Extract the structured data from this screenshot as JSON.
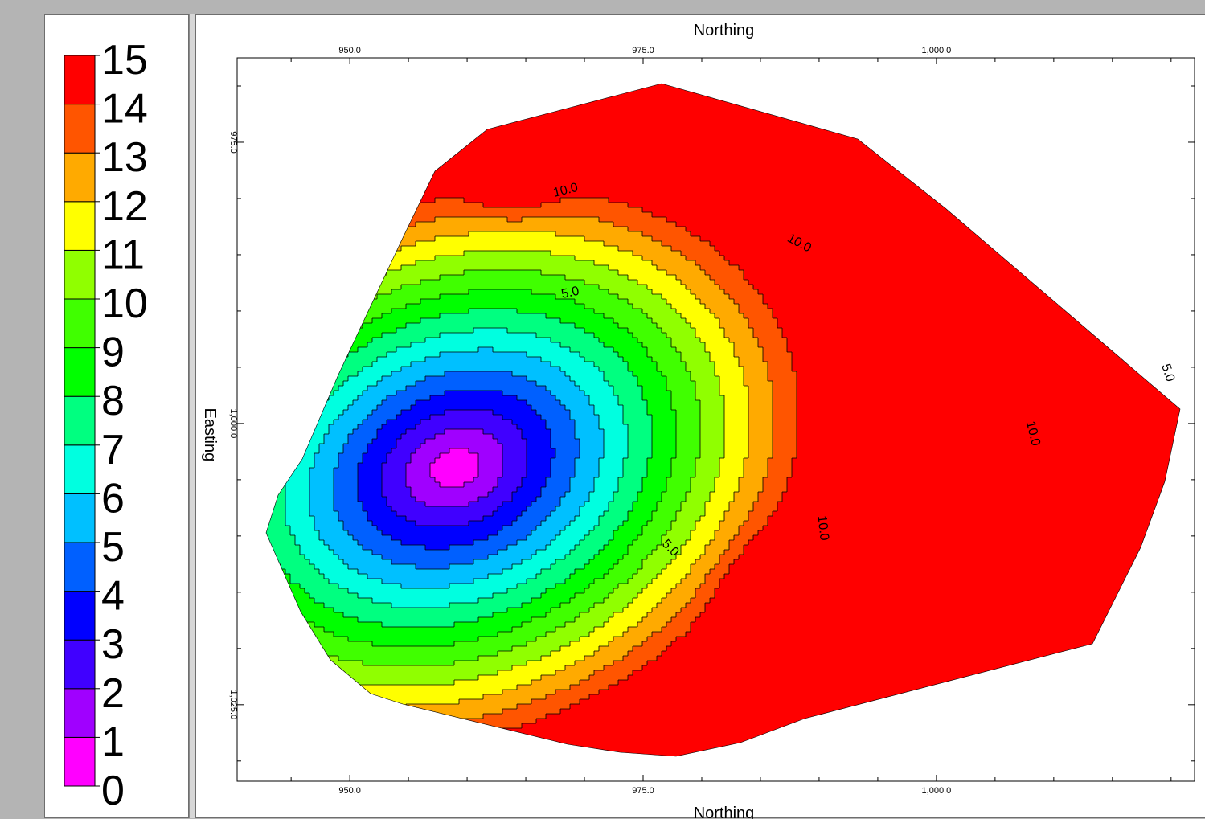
{
  "chart_data": {
    "type": "heatmap",
    "subtype": "filled contour map",
    "title": "",
    "xlabel": "Northing",
    "ylabel": "Easting",
    "x_ticks": [
      "950.0",
      "975.0",
      "1,000.0"
    ],
    "y_ticks": [
      "975.0",
      "1,000.0",
      "1,025.0"
    ],
    "x_tick_values": [
      950,
      975,
      1000
    ],
    "y_tick_values": [
      975,
      1000,
      1025
    ],
    "xlim": [
      940.4,
      1022.0
    ],
    "ylim": [
      967.5,
      1031.8
    ],
    "y_axis_direction": "increasing downward",
    "color_levels": [
      0,
      1,
      2,
      3,
      4,
      5,
      6,
      7,
      8,
      9,
      10,
      11,
      12,
      13,
      14,
      15
    ],
    "color_labels": [
      "0",
      "1",
      "2",
      "3",
      "4",
      "5",
      "6",
      "7",
      "8",
      "9",
      "10",
      "11",
      "12",
      "13",
      "14",
      "15"
    ],
    "colors": [
      "#ff00ff",
      "#a000ff",
      "#4000ff",
      "#0000ff",
      "#0060ff",
      "#00c0ff",
      "#00ffe0",
      "#00ff80",
      "#00ff00",
      "#40ff00",
      "#90ff00",
      "#ffff00",
      "#ffaa00",
      "#ff5500",
      "#ff0000"
    ],
    "contour_labels": [
      {
        "text": "10.0",
        "x": 968.4,
        "y": 979.3,
        "angle": -14
      },
      {
        "text": "10.0",
        "x": 988.3,
        "y": 984.0,
        "angle": 28
      },
      {
        "text": "5.0",
        "x": 968.8,
        "y": 988.4,
        "angle": -12
      },
      {
        "text": "5.0",
        "x": 1019.7,
        "y": 995.5,
        "angle": 72
      },
      {
        "text": "10.0",
        "x": 1008.2,
        "y": 1000.9,
        "angle": 76
      },
      {
        "text": "10.0",
        "x": 990.3,
        "y": 1009.3,
        "angle": 84
      },
      {
        "text": "5.0",
        "x": 977.3,
        "y": 1011.1,
        "angle": 45
      }
    ],
    "grid": false,
    "legend_position": "left"
  }
}
